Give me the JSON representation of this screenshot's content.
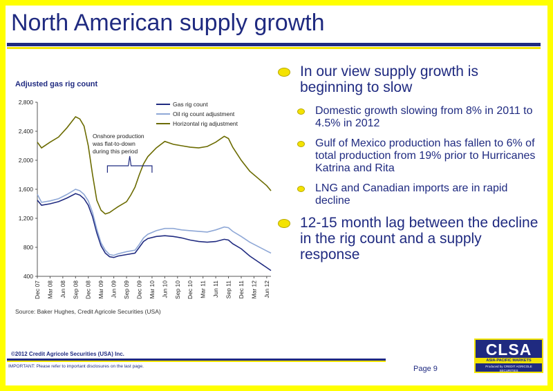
{
  "header": {
    "title": "North American supply growth"
  },
  "chart_data": {
    "type": "line",
    "title": "Adjusted gas rig count",
    "ylim": [
      400,
      2800
    ],
    "yticks": [
      400,
      800,
      1200,
      1600,
      2000,
      2400,
      2800
    ],
    "ytick_labels": [
      "400",
      "800",
      "1,200",
      "1,600",
      "2,000",
      "2,400",
      "2,800"
    ],
    "xtick_labels": [
      "Dec 07",
      "Mar 08",
      "Jun 08",
      "Sep 08",
      "Dec 08",
      "Mar 09",
      "Jun 09",
      "Sep 09",
      "Dec 09",
      "Mar 10",
      "Jun 10",
      "Sep 10",
      "Dec 10",
      "Mar 11",
      "Jun 11",
      "Sep 11",
      "Dec 11",
      "Mar 12",
      "Jun 12"
    ],
    "x_months": 55,
    "legend_position": "top-right",
    "annotation": [
      "Onshore production",
      "was flat-to-down",
      "during this period"
    ],
    "series": [
      {
        "name": "Gas rig count",
        "color": "#1F2A80",
        "points": [
          [
            0,
            1450
          ],
          [
            1,
            1380
          ],
          [
            3,
            1400
          ],
          [
            5,
            1430
          ],
          [
            7,
            1480
          ],
          [
            9,
            1540
          ],
          [
            10,
            1520
          ],
          [
            11,
            1470
          ],
          [
            12,
            1380
          ],
          [
            13,
            1220
          ],
          [
            14,
            1000
          ],
          [
            15,
            820
          ],
          [
            16,
            720
          ],
          [
            17,
            670
          ],
          [
            18,
            660
          ],
          [
            19,
            680
          ],
          [
            21,
            700
          ],
          [
            23,
            720
          ],
          [
            24,
            800
          ],
          [
            25,
            880
          ],
          [
            26,
            920
          ],
          [
            28,
            950
          ],
          [
            30,
            960
          ],
          [
            32,
            950
          ],
          [
            34,
            930
          ],
          [
            36,
            900
          ],
          [
            38,
            880
          ],
          [
            40,
            870
          ],
          [
            42,
            880
          ],
          [
            44,
            910
          ],
          [
            45,
            900
          ],
          [
            46,
            850
          ],
          [
            48,
            780
          ],
          [
            50,
            680
          ],
          [
            52,
            600
          ],
          [
            54,
            520
          ],
          [
            55,
            480
          ]
        ]
      },
      {
        "name": "Oil rig count adjustment",
        "color": "#8EA7D6",
        "points": [
          [
            0,
            1530
          ],
          [
            1,
            1420
          ],
          [
            3,
            1440
          ],
          [
            5,
            1470
          ],
          [
            7,
            1530
          ],
          [
            9,
            1600
          ],
          [
            10,
            1580
          ],
          [
            11,
            1530
          ],
          [
            12,
            1440
          ],
          [
            13,
            1280
          ],
          [
            14,
            1050
          ],
          [
            15,
            860
          ],
          [
            16,
            760
          ],
          [
            17,
            700
          ],
          [
            18,
            690
          ],
          [
            19,
            710
          ],
          [
            21,
            740
          ],
          [
            23,
            760
          ],
          [
            24,
            840
          ],
          [
            25,
            930
          ],
          [
            26,
            980
          ],
          [
            28,
            1030
          ],
          [
            30,
            1060
          ],
          [
            32,
            1060
          ],
          [
            34,
            1040
          ],
          [
            36,
            1030
          ],
          [
            38,
            1020
          ],
          [
            40,
            1010
          ],
          [
            42,
            1040
          ],
          [
            44,
            1080
          ],
          [
            45,
            1070
          ],
          [
            46,
            1020
          ],
          [
            48,
            950
          ],
          [
            50,
            870
          ],
          [
            52,
            810
          ],
          [
            54,
            750
          ],
          [
            55,
            720
          ]
        ]
      },
      {
        "name": "Horizontal rig adjustment",
        "color": "#6B6B00",
        "points": [
          [
            0,
            2250
          ],
          [
            1,
            2170
          ],
          [
            3,
            2250
          ],
          [
            5,
            2320
          ],
          [
            7,
            2450
          ],
          [
            9,
            2600
          ],
          [
            10,
            2570
          ],
          [
            11,
            2470
          ],
          [
            12,
            2200
          ],
          [
            13,
            1800
          ],
          [
            14,
            1450
          ],
          [
            15,
            1310
          ],
          [
            16,
            1260
          ],
          [
            17,
            1280
          ],
          [
            18,
            1320
          ],
          [
            19,
            1360
          ],
          [
            21,
            1430
          ],
          [
            22,
            1520
          ],
          [
            23,
            1630
          ],
          [
            24,
            1800
          ],
          [
            25,
            1950
          ],
          [
            26,
            2050
          ],
          [
            28,
            2170
          ],
          [
            30,
            2260
          ],
          [
            32,
            2220
          ],
          [
            34,
            2200
          ],
          [
            36,
            2180
          ],
          [
            38,
            2170
          ],
          [
            40,
            2190
          ],
          [
            42,
            2250
          ],
          [
            44,
            2330
          ],
          [
            45,
            2300
          ],
          [
            46,
            2180
          ],
          [
            48,
            2000
          ],
          [
            50,
            1850
          ],
          [
            52,
            1750
          ],
          [
            54,
            1650
          ],
          [
            55,
            1580
          ]
        ]
      }
    ],
    "source": "Source: Baker Hughes, Credit Agricole Securities (USA)"
  },
  "bullets": [
    {
      "text": "In our view supply growth is beginning to slow",
      "level": 1
    },
    {
      "text": "Domestic growth slowing from 8% in 2011 to 4.5% in 2012",
      "level": 2
    },
    {
      "text": "Gulf of Mexico production has fallen to 6% of total production from 19% prior to Hurricanes Katrina and Rita",
      "level": 2
    },
    {
      "text": "LNG and Canadian imports are in rapid decline",
      "level": 2
    },
    {
      "text": "12-15 month lag between the decline in the rig count and a supply response",
      "level": 1
    }
  ],
  "footer": {
    "copyright": "©2012 Credit Agricole Securities (USA) Inc.",
    "important": "IMPORTANT: Please refer to important disclosures on the last page.",
    "page": "Page 9"
  },
  "logo": {
    "name": "CLSA",
    "tagline": "ASIA-PACIFIC MARKETS",
    "produced_by": "Produced by CREDIT AGRICOLE SECURITIES"
  },
  "colors": {
    "brand_blue": "#1F2A80",
    "brand_yellow": "#F2E400",
    "border": "#FFFF00"
  }
}
